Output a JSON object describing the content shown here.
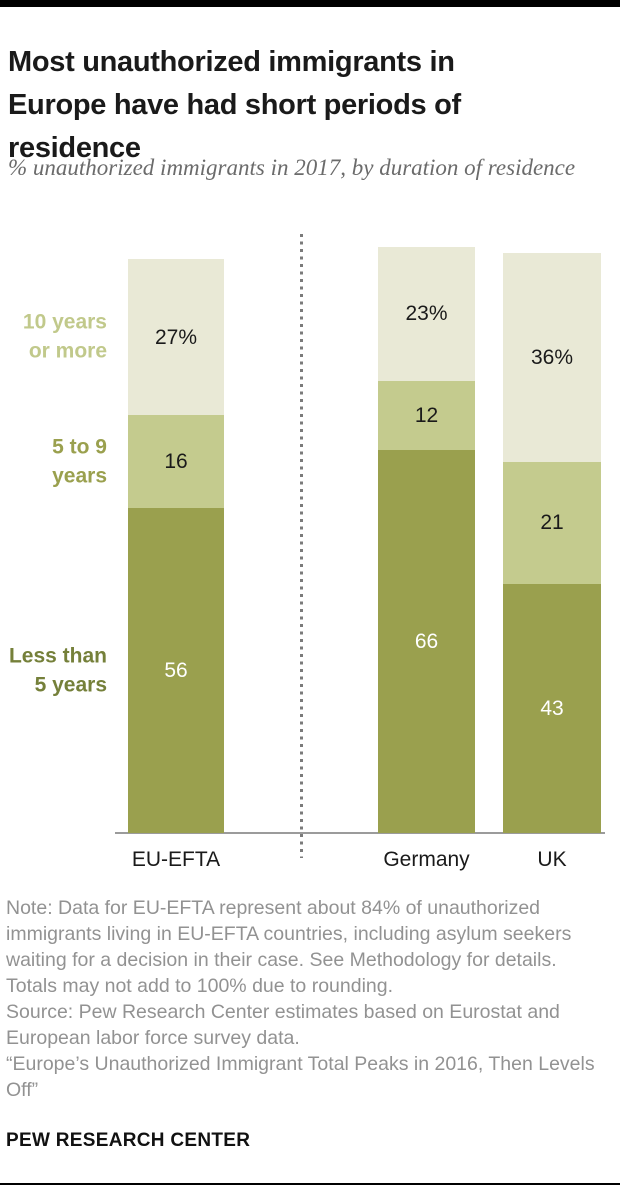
{
  "header": {
    "title": "Most unauthorized immigrants in Europe have had short periods of residence",
    "subtitle": "% unauthorized immigrants in 2017, by duration of residence"
  },
  "chart_data": {
    "type": "bar",
    "variant": "stacked-vertical-100pct",
    "unit": "%",
    "categories": [
      "EU-EFTA",
      "Germany",
      "UK"
    ],
    "series": [
      {
        "name": "10 years or more",
        "values": [
          27,
          23,
          36
        ],
        "data_labels": [
          "27%",
          "23%",
          "36%"
        ],
        "color": "#e9e9d6",
        "label_text_color": "#1a1a1a"
      },
      {
        "name": "5 to 9 years",
        "values": [
          16,
          12,
          21
        ],
        "data_labels": [
          "16",
          "12",
          "21"
        ],
        "color": "#c4cb8e",
        "label_text_color": "#1a1a1a"
      },
      {
        "name": "Less than 5 years",
        "values": [
          56,
          66,
          43
        ],
        "data_labels": [
          "56",
          "66",
          "43"
        ],
        "color": "#9aa04e",
        "label_text_color": "#ffffff"
      }
    ],
    "row_labels": [
      {
        "lines": [
          "10 years",
          "or more"
        ],
        "color": "#c1c98b"
      },
      {
        "lines": [
          "5 to 9",
          "years"
        ],
        "color": "#9aa04e"
      },
      {
        "lines": [
          "Less than",
          "5 years"
        ],
        "color": "#75803a"
      }
    ],
    "ylim": [
      0,
      101
    ],
    "grid": false,
    "legend_position": "left-of-first-bar",
    "separator_between": [
      "EU-EFTA",
      "Germany"
    ],
    "axis_color": "#9b9b9b"
  },
  "footer": {
    "note": "Note: Data for EU-EFTA represent about 84% of unauthorized immigrants living in EU-EFTA countries, including asylum seekers waiting for a decision in their case. See Methodology for details. Totals may not add to 100% due to rounding.",
    "source": "Source: Pew Research Center estimates based on Eurostat and European labor force survey data.",
    "report_title": "“Europe’s Unauthorized Immigrant Total Peaks in 2016, Then Levels Off”",
    "brand": "PEW RESEARCH CENTER"
  }
}
